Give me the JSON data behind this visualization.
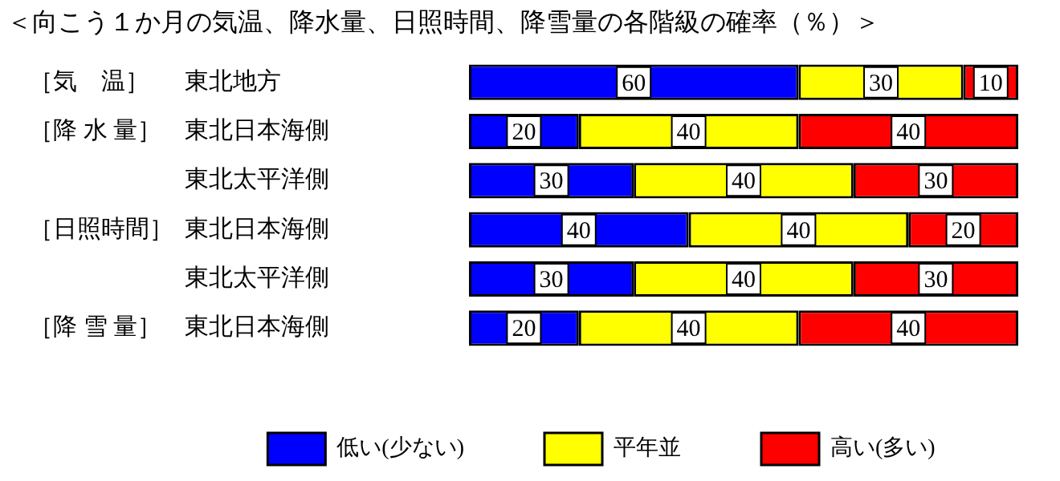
{
  "chart_data": {
    "type": "bar",
    "orientation": "horizontal",
    "stacked": true,
    "title": "＜向こう１か月の気温、降水量、日照時間、降雪量の各階級の確率（％）＞",
    "categories": [
      "東北地方",
      "東北日本海側",
      "東北太平洋側",
      "東北日本海側",
      "東北太平洋側",
      "東北日本海側"
    ],
    "series": [
      {
        "name": "低い(少ない)",
        "color": "#0000ff",
        "values": [
          60,
          20,
          30,
          40,
          30,
          20
        ]
      },
      {
        "name": "平年並",
        "color": "#ffff00",
        "values": [
          30,
          40,
          40,
          40,
          40,
          40
        ]
      },
      {
        "name": "高い(多い)",
        "color": "#ff0000",
        "values": [
          10,
          40,
          30,
          20,
          30,
          40
        ]
      }
    ],
    "annotations": [
      "［気　温］",
      "［降 水 量］",
      "［日照時間］",
      "［降 雪 量］"
    ],
    "tick_labels": "y",
    "grid": false,
    "legend": "bottom",
    "data_labels": true
  }
}
